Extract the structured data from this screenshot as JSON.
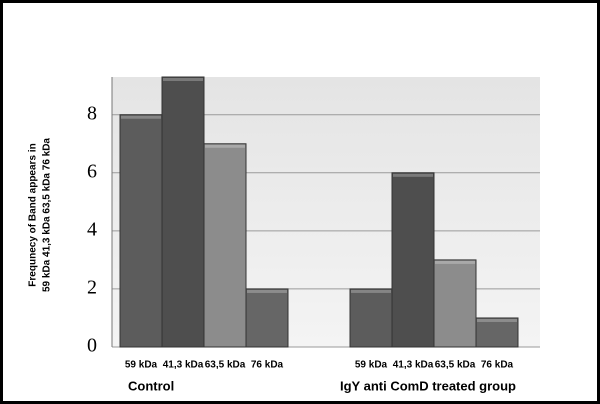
{
  "chart_data": {
    "type": "bar",
    "ylabel": [
      "Frequnecy   of Band  appears in",
      "59 kDa   41,3 kDa   63,5 kDa   76 kDa"
    ],
    "categories": [
      "Control",
      "IgY anti ComD  treated group"
    ],
    "series": [
      {
        "name": "59 kDa",
        "color": "#5c5c5c",
        "values": [
          8,
          2
        ]
      },
      {
        "name": "41,3 kDa",
        "color": "#4e4e4e",
        "values": [
          9.3,
          6
        ]
      },
      {
        "name": "63,5 kDa",
        "color": "#8c8c8c",
        "values": [
          7,
          3
        ]
      },
      {
        "name": "76 kDa",
        "color": "#666666",
        "values": [
          2,
          1
        ]
      }
    ],
    "ylim": [
      0,
      9.3
    ],
    "yticks": [
      0,
      2,
      4,
      6,
      8
    ],
    "grid": true
  }
}
